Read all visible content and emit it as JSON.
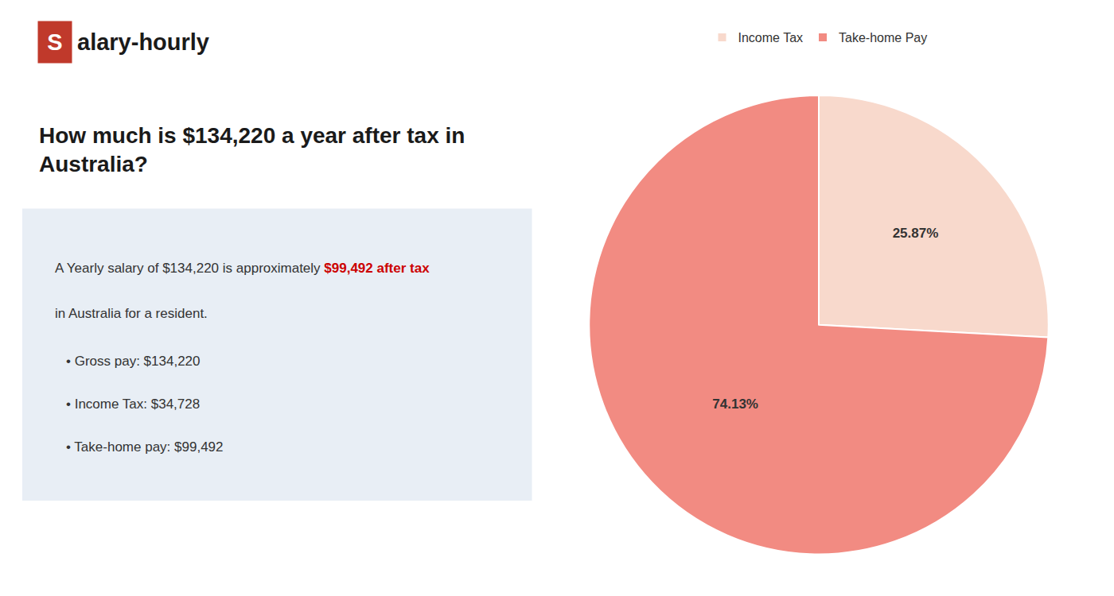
{
  "chart_data": {
    "type": "pie",
    "title": "How much is $134,220 a year after tax in\nAustralia?",
    "categories": [
      "Income Tax",
      "Take-home Pay"
    ],
    "values": [
      25.87,
      74.13
    ],
    "value_labels": [
      "25.87%",
      "74.13%"
    ],
    "colors": [
      "#f8d9cc",
      "#f28b82"
    ],
    "data_labels": true,
    "legend": "top",
    "annotations": [
      {
        "text": "S"
      },
      {
        "text": "alary-hourly"
      },
      {
        "text": "A Yearly salary of $134,220 is approximately "
      },
      {
        "text": "$99,492 after tax",
        "color": "#cc0000"
      },
      {
        "text": "in Australia for a resident."
      },
      {
        "text": "• Gross pay: $134,220"
      },
      {
        "text": "• Income Tax: $34,728"
      },
      {
        "text": "• Take-home pay: $99,492"
      }
    ]
  }
}
